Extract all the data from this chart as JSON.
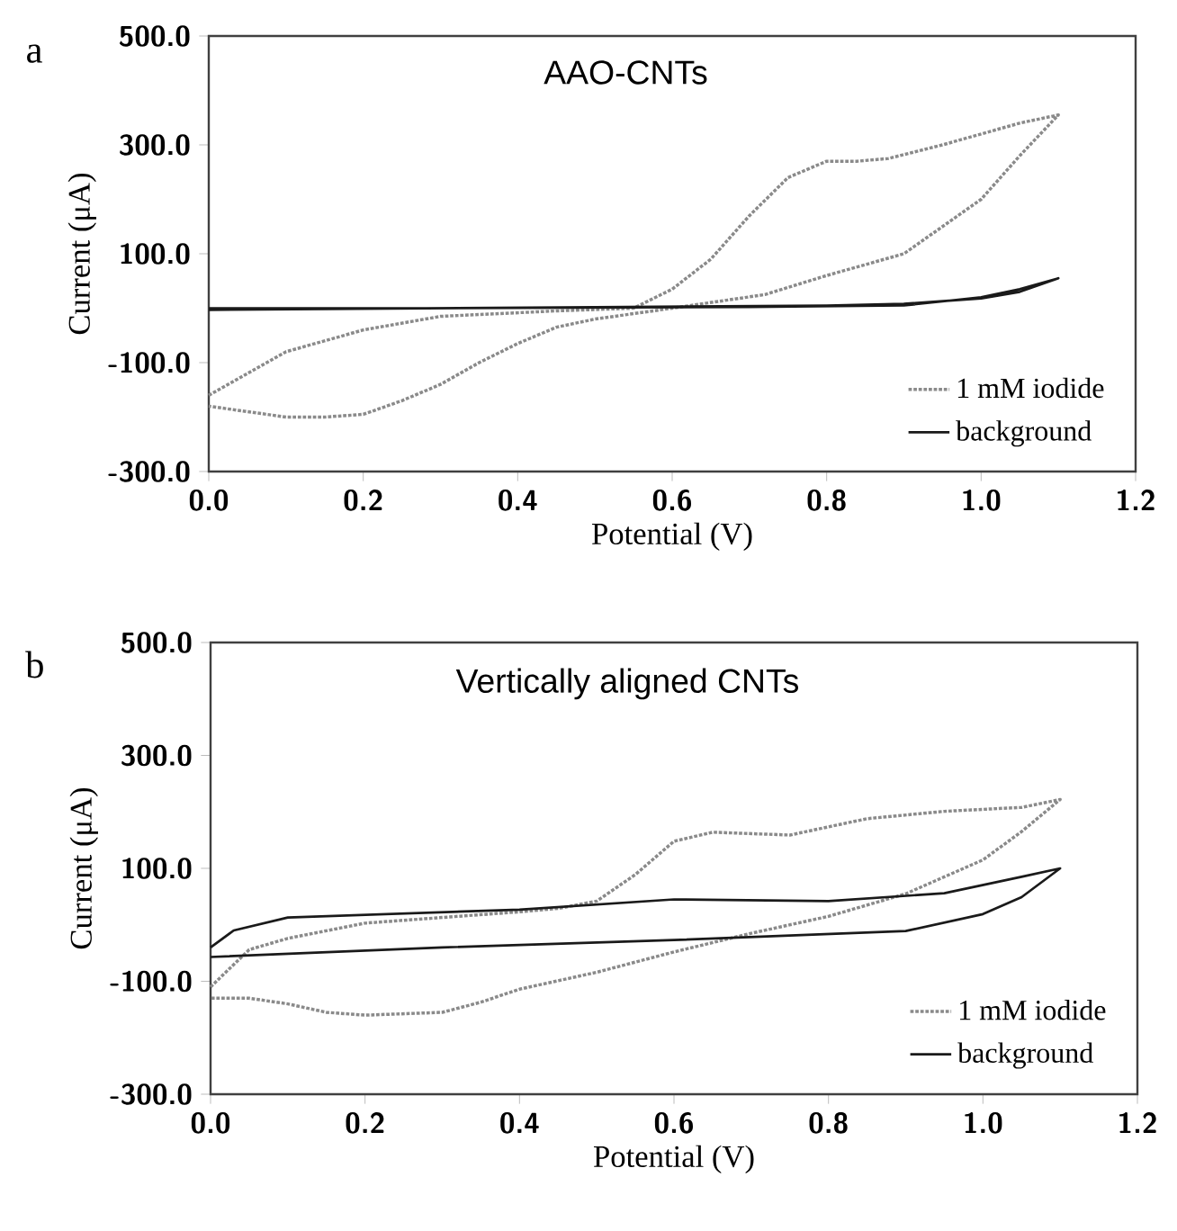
{
  "chart_data": [
    {
      "type": "line",
      "title": "AAO-CNTs",
      "xlabel": "Potential (V)",
      "ylabel": "Current (μA)",
      "annotations": [
        "a"
      ],
      "xlim": [
        0,
        1.2
      ],
      "xticks": [
        {
          "value": 0,
          "label": "0.0"
        },
        {
          "value": 0.2,
          "label": "0.2"
        },
        {
          "value": 0.4,
          "label": "0.4"
        },
        {
          "value": 0.6,
          "label": "0.6"
        },
        {
          "value": 0.8,
          "label": "0.8"
        },
        {
          "value": 1.0,
          "label": "1.0"
        },
        {
          "value": 1.2,
          "label": "1.2"
        }
      ],
      "ylim": [
        -300,
        500
      ],
      "yticks": [
        {
          "value": -300,
          "label": "-300.0"
        },
        {
          "value": -100,
          "label": "-100.0"
        },
        {
          "value": 100,
          "label": "100.0"
        },
        {
          "value": 300,
          "label": "300.0"
        },
        {
          "value": 500,
          "label": "500.0"
        }
      ],
      "legend": "bottom right",
      "marker": "none",
      "series": [
        {
          "name": "1 mM iodide",
          "color": "#8a8a8a",
          "line_style": "dotted",
          "x": [
            0,
            0.1,
            0.2,
            0.3,
            0.45,
            0.55,
            0.6,
            0.65,
            0.7,
            0.75,
            0.8,
            0.84,
            0.88,
            0.95,
            1.05,
            1.1,
            1.05,
            1.0,
            0.95,
            0.9,
            0.8,
            0.72,
            0.6,
            0.5,
            0.45,
            0.4,
            0.35,
            0.3,
            0.25,
            0.2,
            0.15,
            0.1,
            0.05,
            0
          ],
          "values": [
            -160,
            -80,
            -40,
            -15,
            -5,
            0,
            35,
            90,
            170,
            240,
            270,
            270,
            275,
            300,
            340,
            355,
            280,
            200,
            150,
            100,
            60,
            25,
            0,
            -20,
            -35,
            -65,
            -100,
            -140,
            -170,
            -195,
            -200,
            -200,
            -190,
            -180
          ]
        },
        {
          "name": "background",
          "color": "#1a1a1a",
          "line_style": "solid",
          "x": [
            0,
            0.5,
            0.8,
            0.9,
            1.0,
            1.05,
            1.1,
            1.05,
            1.0,
            0.9,
            0.7,
            0.3,
            0
          ],
          "values": [
            -3,
            2,
            5,
            8,
            18,
            30,
            55,
            35,
            20,
            5,
            2,
            0,
            0
          ]
        }
      ]
    },
    {
      "type": "line",
      "title": "Vertically aligned CNTs",
      "xlabel": "Potential (V)",
      "ylabel": "Current (μA)",
      "annotations": [
        "b"
      ],
      "xlim": [
        0,
        1.2
      ],
      "xticks": [
        {
          "value": 0,
          "label": "0.0"
        },
        {
          "value": 0.2,
          "label": "0.2"
        },
        {
          "value": 0.4,
          "label": "0.4"
        },
        {
          "value": 0.6,
          "label": "0.6"
        },
        {
          "value": 0.8,
          "label": "0.8"
        },
        {
          "value": 1.0,
          "label": "1.0"
        },
        {
          "value": 1.2,
          "label": "1.2"
        }
      ],
      "ylim": [
        -300,
        500
      ],
      "yticks": [
        {
          "value": -300,
          "label": "-300.0"
        },
        {
          "value": -100,
          "label": "-100.0"
        },
        {
          "value": 100,
          "label": "100.0"
        },
        {
          "value": 300,
          "label": "300.0"
        },
        {
          "value": 500,
          "label": "500.0"
        }
      ],
      "legend": "bottom right",
      "marker": "none",
      "series": [
        {
          "name": "1 mM iodide",
          "color": "#8a8a8a",
          "line_style": "dotted",
          "x": [
            0,
            0.05,
            0.1,
            0.2,
            0.3,
            0.4,
            0.45,
            0.5,
            0.55,
            0.6,
            0.65,
            0.75,
            0.85,
            0.95,
            1.05,
            1.1,
            1.05,
            1.0,
            0.95,
            0.9,
            0.8,
            0.7,
            0.6,
            0.5,
            0.4,
            0.35,
            0.3,
            0.2,
            0.15,
            0.1,
            0.05,
            0
          ],
          "values": [
            -110,
            -44,
            -24,
            3,
            13,
            23,
            29,
            42,
            89,
            148,
            164,
            159,
            188,
            201,
            208,
            222,
            165,
            115,
            85,
            55,
            15,
            -15,
            -48,
            -84,
            -114,
            -137,
            -155,
            -160,
            -155,
            -140,
            -130,
            -130
          ]
        },
        {
          "name": "background",
          "color": "#1a1a1a",
          "line_style": "solid",
          "x": [
            0,
            0.03,
            0.1,
            0.4,
            0.6,
            0.8,
            0.95,
            1.05,
            1.1,
            1.05,
            1.0,
            0.9,
            0.6,
            0.3,
            0
          ],
          "values": [
            -40,
            -10,
            13,
            27,
            45,
            42,
            56,
            85,
            100,
            49,
            19,
            -11,
            -27,
            -40,
            -57
          ]
        }
      ]
    }
  ]
}
